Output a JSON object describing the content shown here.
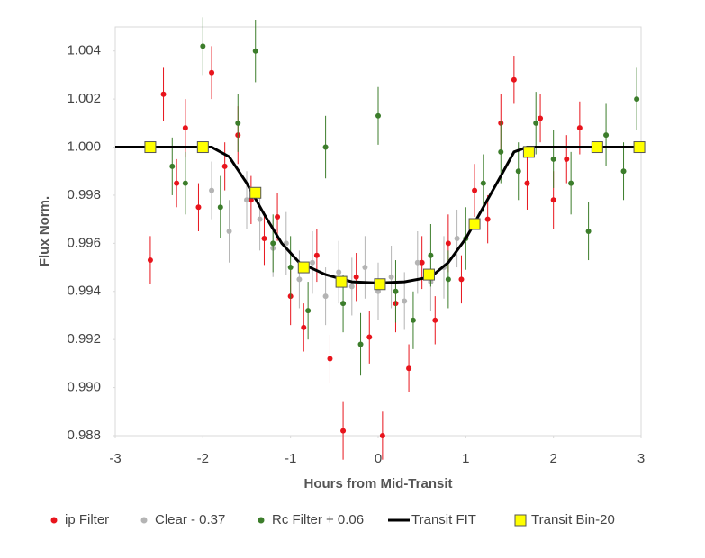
{
  "chart_data": {
    "type": "scatter",
    "x_label": "Hours from Mid-Transit",
    "y_label": "Flux Norm.",
    "xlim": [
      -3,
      3
    ],
    "xticks": [
      -3,
      -2,
      -1,
      0,
      1,
      2,
      3
    ],
    "ylim": [
      0.988,
      1.005
    ],
    "yticks": [
      {
        "value": 0.988,
        "label": "0.988"
      },
      {
        "value": 0.99,
        "label": "0.990"
      },
      {
        "value": 0.992,
        "label": "0.992"
      },
      {
        "value": 0.994,
        "label": "0.994"
      },
      {
        "value": 0.996,
        "label": "0.996"
      },
      {
        "value": 0.998,
        "label": "0.998"
      },
      {
        "value": 1.0,
        "label": "1.000"
      },
      {
        "value": 1.002,
        "label": "1.002"
      },
      {
        "value": 1.004,
        "label": "1.004"
      }
    ],
    "legend": "bottom",
    "series": [
      {
        "name": "ip Filter",
        "color": "#e8141c",
        "marker": "circle",
        "x": [
          -2.6,
          -2.45,
          -2.3,
          -2.2,
          -2.05,
          -1.9,
          -1.75,
          -1.6,
          -1.45,
          -1.3,
          -1.15,
          -1.0,
          -0.85,
          -0.7,
          -0.55,
          -0.4,
          -0.25,
          -0.1,
          0.05,
          0.2,
          0.35,
          0.5,
          0.65,
          0.8,
          0.95,
          1.1,
          1.25,
          1.4,
          1.55,
          1.7,
          1.85,
          2.0,
          2.15,
          2.3
        ],
        "values": [
          0.9953,
          1.0022,
          0.9985,
          1.0008,
          0.9975,
          1.0031,
          0.9992,
          1.0005,
          0.9978,
          0.9962,
          0.9971,
          0.9938,
          0.9925,
          0.9955,
          0.9912,
          0.9882,
          0.9946,
          0.9921,
          0.988,
          0.9935,
          0.9908,
          0.9952,
          0.9928,
          0.996,
          0.9945,
          0.9982,
          0.997,
          1.001,
          1.0028,
          0.9985,
          1.0012,
          0.9978,
          0.9995,
          1.0008
        ],
        "errors": [
          0.001,
          0.0011,
          0.001,
          0.0012,
          0.001,
          0.0011,
          0.001,
          0.0012,
          0.001,
          0.0011,
          0.001,
          0.0012,
          0.001,
          0.0011,
          0.001,
          0.0012,
          0.001,
          0.0011,
          0.001,
          0.0012,
          0.001,
          0.0011,
          0.001,
          0.0012,
          0.001,
          0.0011,
          0.001,
          0.0012,
          0.001,
          0.0011,
          0.001,
          0.0012,
          0.001,
          0.0011
        ]
      },
      {
        "name": "Clear - 0.37",
        "color": "#b4b4b4",
        "marker": "circle",
        "x": [
          -1.9,
          -1.7,
          -1.5,
          -1.35,
          -1.2,
          -1.05,
          -0.9,
          -0.75,
          -0.6,
          -0.45,
          -0.3,
          -0.15,
          0,
          0.15,
          0.3,
          0.45,
          0.6,
          0.75,
          0.9
        ],
        "values": [
          0.9982,
          0.9965,
          0.9978,
          0.997,
          0.9958,
          0.996,
          0.9945,
          0.9952,
          0.9938,
          0.9948,
          0.9942,
          0.995,
          0.994,
          0.9946,
          0.9936,
          0.9952,
          0.9944,
          0.995,
          0.9962
        ],
        "errors": [
          0.0012,
          0.0013,
          0.0012,
          0.0013,
          0.0012,
          0.0013,
          0.0012,
          0.0013,
          0.0012,
          0.0013,
          0.0012,
          0.0013,
          0.0012,
          0.0013,
          0.0012,
          0.0013,
          0.0012,
          0.0013,
          0.0012
        ]
      },
      {
        "name": "Rc Filter + 0.06",
        "color": "#3c7d2b",
        "marker": "circle",
        "x": [
          -2.35,
          -2.2,
          -2.0,
          -1.8,
          -1.6,
          -1.4,
          -1.2,
          -1.0,
          -0.8,
          -0.6,
          -0.4,
          -0.2,
          0,
          0.2,
          0.4,
          0.6,
          0.8,
          1.0,
          1.2,
          1.4,
          1.6,
          1.8,
          2.0,
          2.2,
          2.4,
          2.6,
          2.8,
          2.95
        ],
        "values": [
          0.9992,
          0.9985,
          1.0042,
          0.9975,
          1.001,
          1.004,
          0.996,
          0.995,
          0.9932,
          1.0,
          0.9935,
          0.9918,
          1.0013,
          0.994,
          0.9928,
          0.9955,
          0.9945,
          0.9962,
          0.9985,
          0.9998,
          0.999,
          1.001,
          0.9995,
          0.9985,
          0.9965,
          1.0005,
          0.999,
          1.002
        ],
        "errors": [
          0.0012,
          0.0013,
          0.0012,
          0.0013,
          0.0012,
          0.0013,
          0.0012,
          0.0013,
          0.0012,
          0.0013,
          0.0012,
          0.0013,
          0.0012,
          0.0013,
          0.0012,
          0.0013,
          0.0012,
          0.0013,
          0.0012,
          0.0013,
          0.0012,
          0.0013,
          0.0012,
          0.0013,
          0.0012,
          0.0013,
          0.0012,
          0.0013
        ]
      },
      {
        "name": "Transit FIT",
        "color": "#000000",
        "marker": "line",
        "x": [
          -3,
          -1.9,
          -1.7,
          -1.5,
          -1.3,
          -1.1,
          -0.9,
          -0.6,
          -0.3,
          0,
          0.3,
          0.6,
          0.8,
          1.0,
          1.2,
          1.4,
          1.55,
          1.7,
          3
        ],
        "values": [
          1.0,
          1.0,
          0.9996,
          0.9985,
          0.9972,
          0.996,
          0.9952,
          0.9947,
          0.9944,
          0.99435,
          0.9944,
          0.9946,
          0.9952,
          0.9962,
          0.9975,
          0.9988,
          0.9998,
          1.0,
          1.0
        ]
      },
      {
        "name": "Transit Bin-20",
        "color": "#ffff00",
        "marker": "square",
        "x": [
          -2.6,
          -2.0,
          -1.4,
          -0.85,
          -0.42,
          0.02,
          0.58,
          1.1,
          1.72,
          2.5,
          2.98
        ],
        "values": [
          1.0,
          1.0,
          0.9981,
          0.995,
          0.9944,
          0.9943,
          0.9947,
          0.9968,
          0.9998,
          1.0,
          1.0
        ]
      }
    ]
  }
}
